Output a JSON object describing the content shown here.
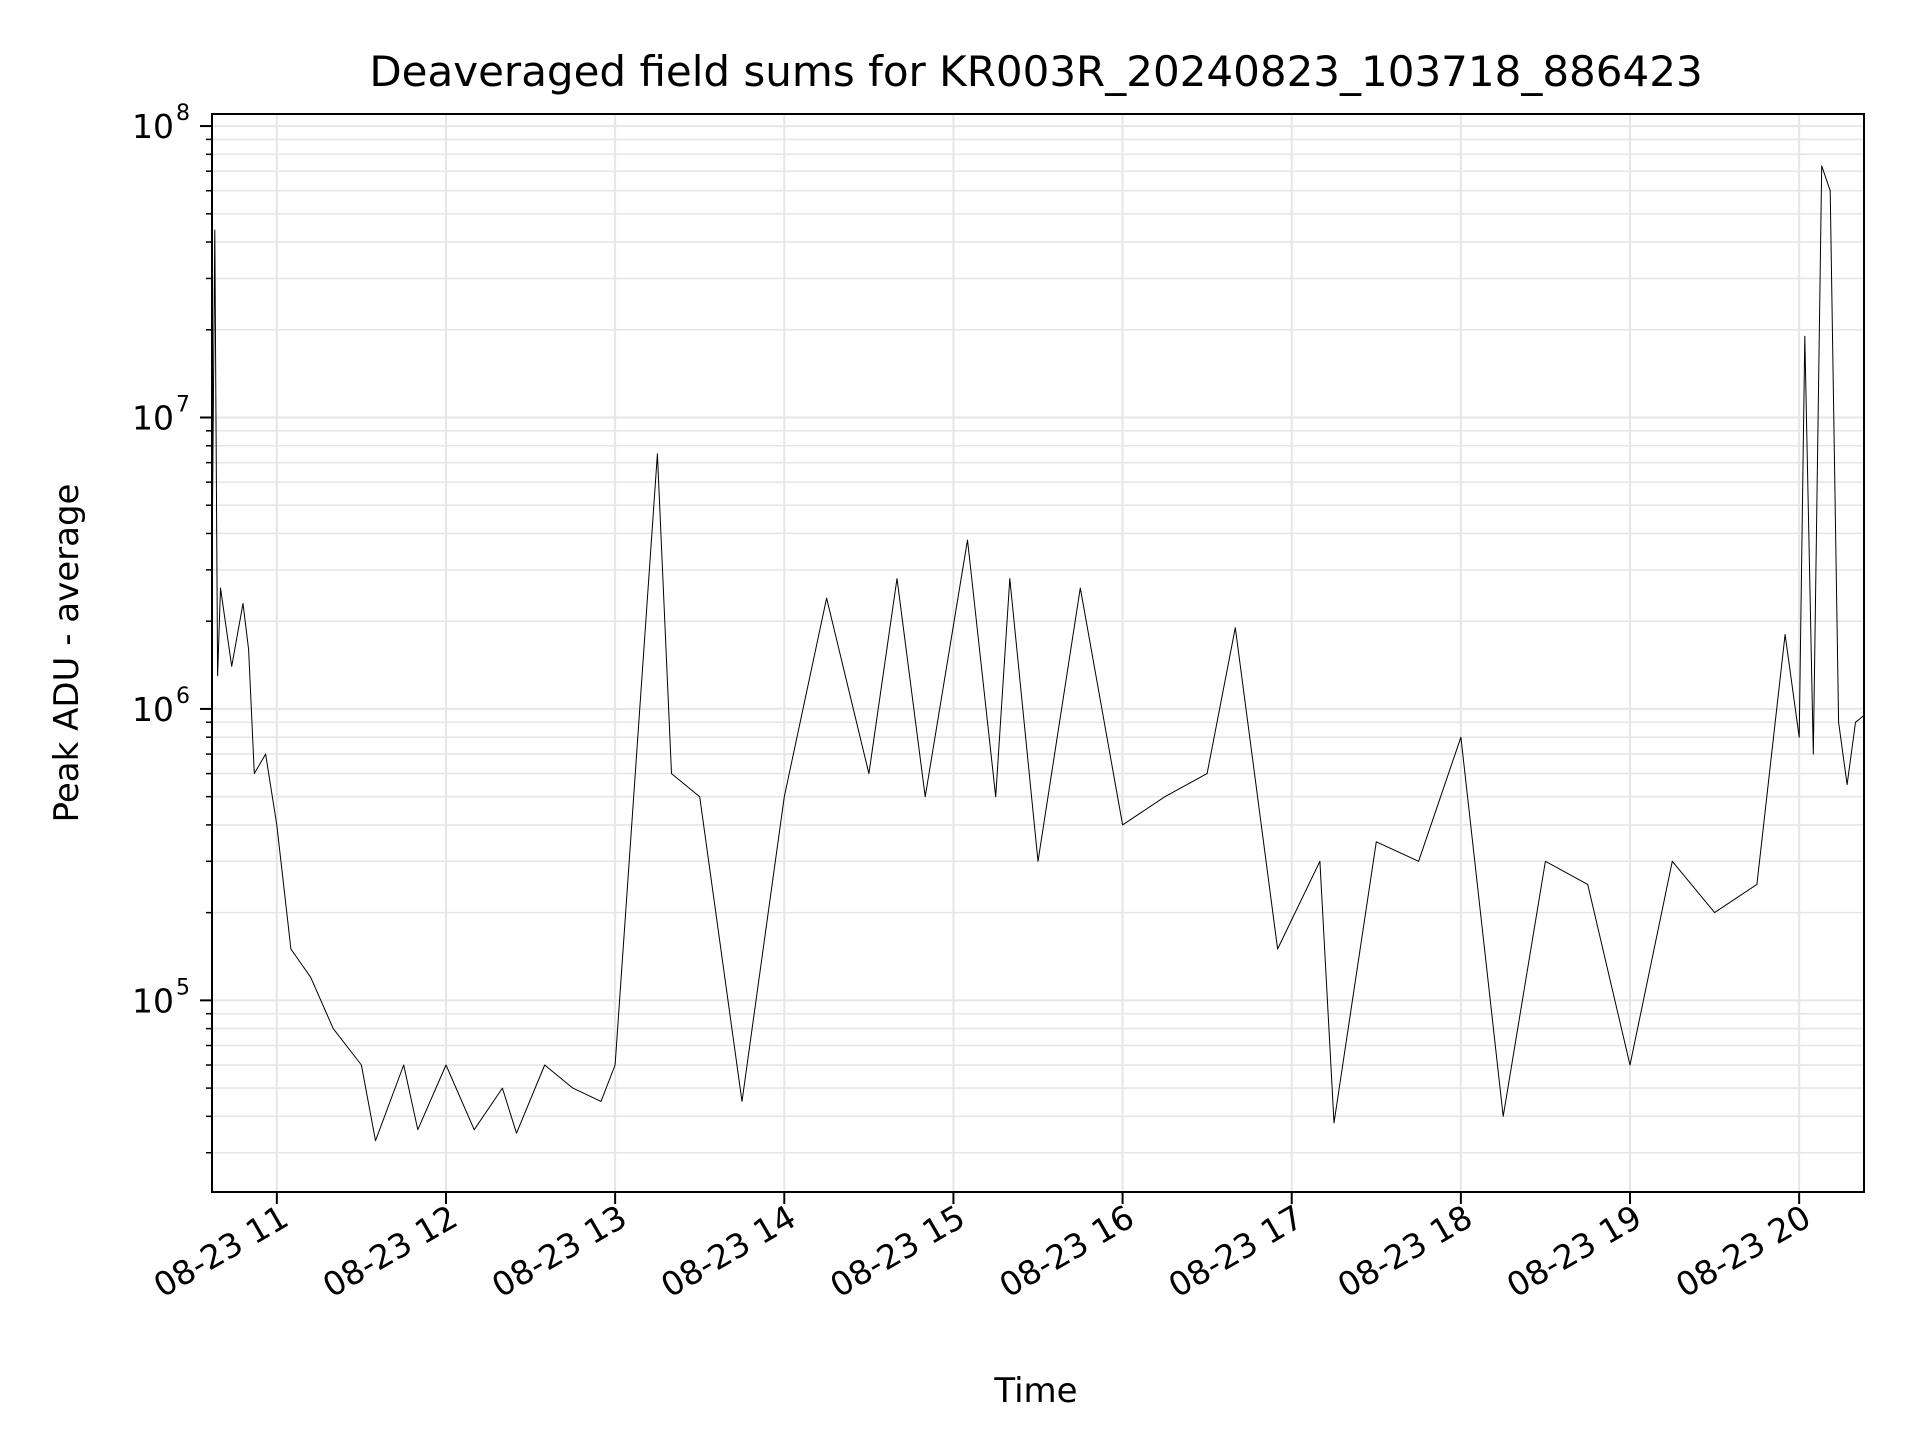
{
  "chart_data": {
    "type": "line",
    "title": "Deaveraged field sums for KR003R_20240823_103718_886423",
    "xlabel": "Time",
    "ylabel": "Peak ADU - average",
    "yscale": "log",
    "ylim": [
      22000,
      110000000
    ],
    "xlim": [
      "08-23 10:37",
      "08-23 20:23"
    ],
    "grid": true,
    "line_color": "#000000",
    "grid_color": "#e6e6e6",
    "x_ticks": [
      "08-23 11",
      "08-23 12",
      "08-23 13",
      "08-23 14",
      "08-23 15",
      "08-23 16",
      "08-23 17",
      "08-23 18",
      "08-23 19",
      "08-23 20"
    ],
    "y_ticks": [
      {
        "base": "10",
        "exp": "5",
        "value": 100000
      },
      {
        "base": "10",
        "exp": "6",
        "value": 1000000
      },
      {
        "base": "10",
        "exp": "7",
        "value": 10000000
      },
      {
        "base": "10",
        "exp": "8",
        "value": 100000000
      }
    ],
    "series": [
      {
        "values": [
          [
            "10:37",
            3000000
          ],
          [
            "10:38",
            44000000
          ],
          [
            "10:39",
            1300000
          ],
          [
            "10:40",
            2600000
          ],
          [
            "10:44",
            1400000
          ],
          [
            "10:48",
            2300000
          ],
          [
            "10:50",
            1600000
          ],
          [
            "10:52",
            600000
          ],
          [
            "10:56",
            700000
          ],
          [
            "11:00",
            400000
          ],
          [
            "11:05",
            150000
          ],
          [
            "11:12",
            120000
          ],
          [
            "11:20",
            80000
          ],
          [
            "11:30",
            60000
          ],
          [
            "11:35",
            33000
          ],
          [
            "11:45",
            60000
          ],
          [
            "11:50",
            36000
          ],
          [
            "12:00",
            60000
          ],
          [
            "12:10",
            36000
          ],
          [
            "12:20",
            50000
          ],
          [
            "12:25",
            35000
          ],
          [
            "12:35",
            60000
          ],
          [
            "12:45",
            50000
          ],
          [
            "12:55",
            45000
          ],
          [
            "13:00",
            60000
          ],
          [
            "13:05",
            300000
          ],
          [
            "13:15",
            7500000
          ],
          [
            "13:20",
            600000
          ],
          [
            "13:30",
            500000
          ],
          [
            "13:45",
            45000
          ],
          [
            "14:00",
            500000
          ],
          [
            "14:15",
            2400000
          ],
          [
            "14:30",
            600000
          ],
          [
            "14:40",
            2800000
          ],
          [
            "14:50",
            500000
          ],
          [
            "15:05",
            3800000
          ],
          [
            "15:15",
            500000
          ],
          [
            "15:20",
            2800000
          ],
          [
            "15:30",
            300000
          ],
          [
            "15:45",
            2600000
          ],
          [
            "16:00",
            400000
          ],
          [
            "16:15",
            500000
          ],
          [
            "16:30",
            600000
          ],
          [
            "16:40",
            1900000
          ],
          [
            "16:55",
            150000
          ],
          [
            "17:10",
            300000
          ],
          [
            "17:15",
            38000
          ],
          [
            "17:30",
            350000
          ],
          [
            "17:45",
            300000
          ],
          [
            "18:00",
            800000
          ],
          [
            "18:15",
            40000
          ],
          [
            "18:30",
            300000
          ],
          [
            "18:45",
            250000
          ],
          [
            "19:00",
            60000
          ],
          [
            "19:15",
            300000
          ],
          [
            "19:30",
            200000
          ],
          [
            "19:45",
            250000
          ],
          [
            "19:55",
            1800000
          ],
          [
            "20:00",
            800000
          ],
          [
            "20:02",
            19000000
          ],
          [
            "20:05",
            700000
          ],
          [
            "20:08",
            73000000
          ],
          [
            "20:11",
            60000000
          ],
          [
            "20:14",
            900000
          ],
          [
            "20:17",
            550000
          ],
          [
            "20:20",
            900000
          ],
          [
            "20:23",
            950000
          ]
        ]
      }
    ]
  }
}
